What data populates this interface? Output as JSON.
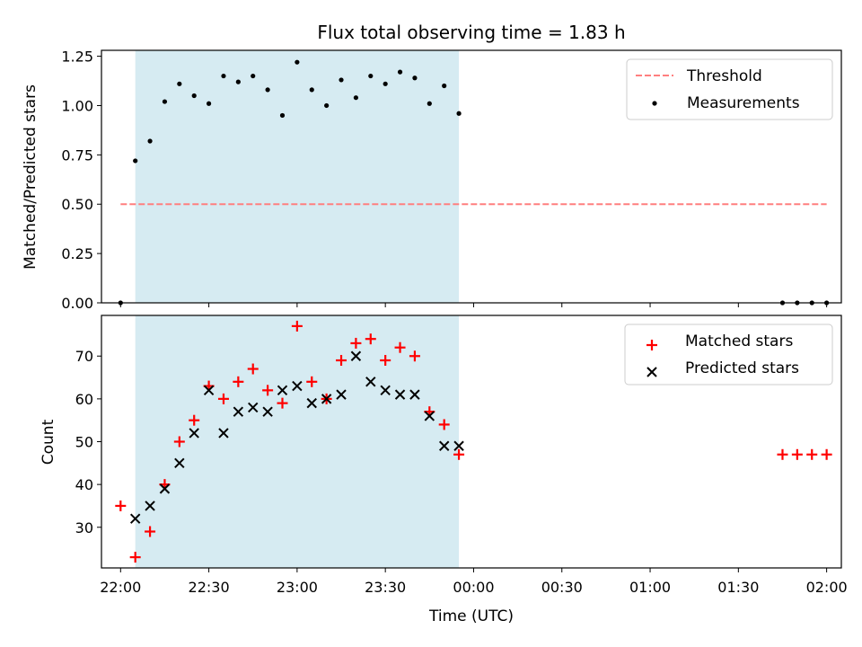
{
  "figure": {
    "title": "Flux total observing time = 1.83 h",
    "xlabel": "Time (UTC)",
    "x_ticks": [
      "22:00",
      "22:30",
      "23:00",
      "23:30",
      "00:00",
      "00:30",
      "01:00",
      "01:30",
      "02:00"
    ]
  },
  "chart_data": [
    {
      "type": "scatter",
      "ylabel": "Matched/Predicted stars",
      "x_unit": "minutes after 22:00 UTC",
      "xlim": [
        -6.5,
        125.5
      ],
      "ylim": [
        0.0,
        1.28
      ],
      "y_ticks": [
        "0.00",
        "0.25",
        "0.50",
        "0.75",
        "1.00",
        "1.25"
      ],
      "y_tick_values": [
        0,
        0.25,
        0.5,
        0.75,
        1.0,
        1.25
      ],
      "shaded_span": {
        "x": [
          2.5,
          57.5
        ],
        "color": "#add8e6"
      },
      "threshold": {
        "name": "Threshold",
        "y": 0.5,
        "x": [
          0,
          120
        ],
        "color": "#ff7f7f",
        "style": "dashed"
      },
      "series": [
        {
          "name": "Measurements",
          "color": "#000000",
          "marker": "dot",
          "x": [
            0,
            2.5,
            5,
            7.5,
            10,
            12.5,
            15,
            17.5,
            20,
            22.5,
            25,
            27.5,
            30,
            32.5,
            35,
            37.5,
            40,
            42.5,
            45,
            47.5,
            50,
            52.5,
            55,
            57.5,
            112.5,
            115,
            117.5,
            120
          ],
          "y": [
            0.0,
            0.72,
            0.82,
            1.02,
            1.11,
            1.05,
            1.01,
            1.15,
            1.12,
            1.15,
            1.08,
            0.95,
            1.22,
            1.08,
            1.0,
            1.13,
            1.04,
            1.15,
            1.11,
            1.17,
            1.14,
            1.01,
            1.1,
            0.96,
            0.0,
            0.0,
            0.0,
            0.0
          ]
        }
      ],
      "legend": {
        "placement": "top-right",
        "entries": [
          "Threshold",
          "Measurements"
        ]
      }
    },
    {
      "type": "scatter",
      "ylabel": "Count",
      "x_unit": "minutes after 22:00 UTC",
      "xlim": [
        -6.5,
        125.5
      ],
      "ylim": [
        20.5,
        79.5
      ],
      "y_ticks": [
        "30",
        "40",
        "50",
        "60",
        "70"
      ],
      "y_tick_values": [
        30,
        40,
        50,
        60,
        70
      ],
      "shaded_span": {
        "x": [
          2.5,
          57.5
        ],
        "color": "#add8e6"
      },
      "series": [
        {
          "name": "Matched stars",
          "color": "#ff0000",
          "marker": "plus",
          "x": [
            0,
            2.5,
            5,
            7.5,
            10,
            12.5,
            15,
            17.5,
            20,
            22.5,
            25,
            27.5,
            30,
            32.5,
            35,
            37.5,
            40,
            42.5,
            45,
            47.5,
            50,
            52.5,
            55,
            57.5,
            112.5,
            115,
            117.5,
            120
          ],
          "y": [
            35,
            23,
            29,
            40,
            50,
            55,
            63,
            60,
            64,
            67,
            62,
            59,
            77,
            64,
            60,
            69,
            73,
            74,
            69,
            72,
            70,
            57,
            54,
            47,
            47,
            47,
            47,
            47
          ]
        },
        {
          "name": "Predicted stars",
          "color": "#000000",
          "marker": "x",
          "x": [
            2.5,
            5,
            7.5,
            10,
            12.5,
            15,
            17.5,
            20,
            22.5,
            25,
            27.5,
            30,
            32.5,
            35,
            37.5,
            40,
            42.5,
            45,
            47.5,
            50,
            52.5,
            55,
            57.5
          ],
          "y": [
            32,
            35,
            39,
            45,
            52,
            62,
            52,
            57,
            58,
            57,
            62,
            63,
            59,
            60,
            61,
            70,
            64,
            62,
            61,
            61,
            56,
            49,
            49
          ]
        }
      ],
      "legend": {
        "placement": "top-right",
        "entries": [
          "Matched stars",
          "Predicted stars"
        ]
      }
    }
  ]
}
